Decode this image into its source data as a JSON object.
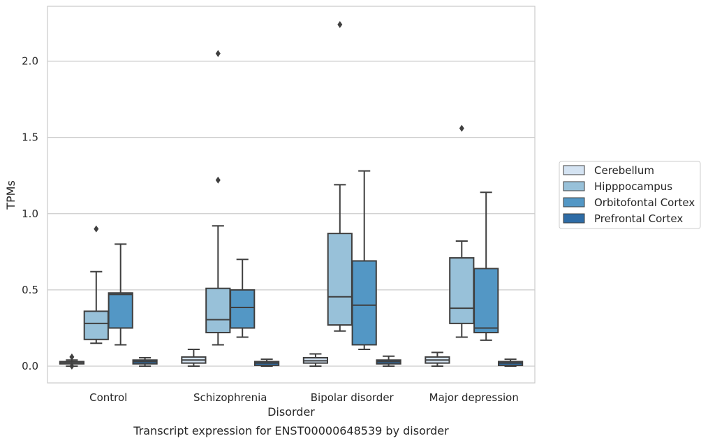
{
  "chart_data": {
    "type": "box",
    "title": "Transcript expression for ENST00000648539 by disorder",
    "xlabel": "Disorder",
    "ylabel": "TPMs",
    "ylim": [
      -0.11,
      2.36
    ],
    "yticks": [
      0.0,
      0.5,
      1.0,
      1.5,
      2.0
    ],
    "ytick_labels": [
      "0.0",
      "0.5",
      "1.0",
      "1.5",
      "2.0"
    ],
    "grid": "horizontal",
    "legend_position": "right",
    "categories": [
      "Control",
      "Schizophrenia",
      "Bipolar disorder",
      "Major depression"
    ],
    "series": [
      {
        "name": "Cerebellum",
        "color": "#d4e3f2",
        "boxes": [
          {
            "whislo": 0.0,
            "q1": 0.015,
            "med": 0.025,
            "q3": 0.03,
            "whishi": 0.04,
            "fliers": [
              0.06,
              0.0
            ]
          },
          {
            "whislo": 0.0,
            "q1": 0.02,
            "med": 0.04,
            "q3": 0.06,
            "whishi": 0.11,
            "fliers": []
          },
          {
            "whislo": 0.0,
            "q1": 0.02,
            "med": 0.035,
            "q3": 0.055,
            "whishi": 0.08,
            "fliers": []
          },
          {
            "whislo": 0.0,
            "q1": 0.02,
            "med": 0.04,
            "q3": 0.06,
            "whishi": 0.09,
            "fliers": []
          }
        ]
      },
      {
        "name": "Hipppocampus",
        "color": "#98c1d9",
        "boxes": [
          {
            "whislo": 0.15,
            "q1": 0.175,
            "med": 0.28,
            "q3": 0.36,
            "whishi": 0.62,
            "fliers": [
              0.9
            ]
          },
          {
            "whislo": 0.14,
            "q1": 0.22,
            "med": 0.305,
            "q3": 0.51,
            "whishi": 0.92,
            "fliers": [
              1.22,
              2.05
            ]
          },
          {
            "whislo": 0.23,
            "q1": 0.27,
            "med": 0.455,
            "q3": 0.87,
            "whishi": 1.19,
            "fliers": [
              2.24
            ]
          },
          {
            "whislo": 0.19,
            "q1": 0.28,
            "med": 0.38,
            "q3": 0.71,
            "whishi": 0.82,
            "fliers": [
              1.56
            ]
          }
        ]
      },
      {
        "name": "Orbitofontal Cortex",
        "color": "#5397c5",
        "boxes": [
          {
            "whislo": 0.14,
            "q1": 0.25,
            "med": 0.47,
            "q3": 0.48,
            "whishi": 0.8,
            "fliers": []
          },
          {
            "whislo": 0.19,
            "q1": 0.25,
            "med": 0.385,
            "q3": 0.5,
            "whishi": 0.7,
            "fliers": []
          },
          {
            "whislo": 0.11,
            "q1": 0.14,
            "med": 0.4,
            "q3": 0.69,
            "whishi": 1.28,
            "fliers": []
          },
          {
            "whislo": 0.17,
            "q1": 0.22,
            "med": 0.25,
            "q3": 0.64,
            "whishi": 1.14,
            "fliers": []
          }
        ]
      },
      {
        "name": "Prefrontal Cortex",
        "color": "#2e6ca6",
        "boxes": [
          {
            "whislo": 0.0,
            "q1": 0.015,
            "med": 0.03,
            "q3": 0.04,
            "whishi": 0.055,
            "fliers": []
          },
          {
            "whislo": 0.0,
            "q1": 0.005,
            "med": 0.02,
            "q3": 0.03,
            "whishi": 0.045,
            "fliers": []
          },
          {
            "whislo": 0.0,
            "q1": 0.015,
            "med": 0.03,
            "q3": 0.04,
            "whishi": 0.065,
            "fliers": []
          },
          {
            "whislo": 0.0,
            "q1": 0.005,
            "med": 0.02,
            "q3": 0.03,
            "whishi": 0.045,
            "fliers": []
          }
        ]
      }
    ]
  }
}
